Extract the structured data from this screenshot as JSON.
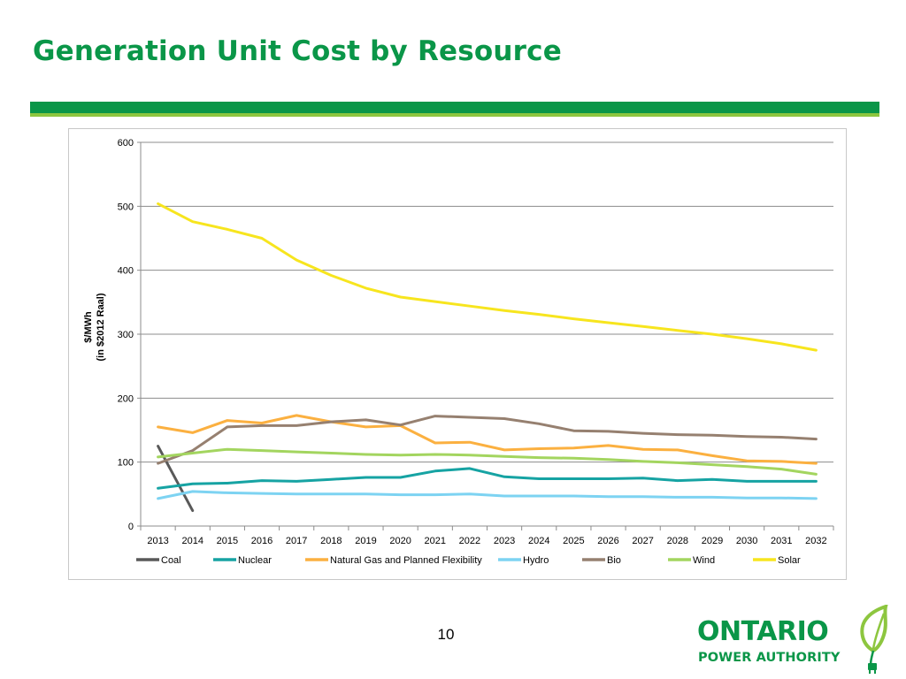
{
  "slide": {
    "title": "Generation Unit Cost by Resource",
    "page_number": "10"
  },
  "logo": {
    "line1": "ONTARIO",
    "line2": "POWER AUTHORITY",
    "leaf_icon": "leaf-plug-icon"
  },
  "colors": {
    "brand_green": "#0a9648",
    "light_green": "#8dc63f"
  },
  "chart_data": {
    "type": "line",
    "title": "",
    "xlabel": "",
    "ylabel_lines": [
      "$/MWh",
      "(in $2012 Raal)"
    ],
    "ylim": [
      0,
      600
    ],
    "yticks": [
      0,
      100,
      200,
      300,
      400,
      500,
      600
    ],
    "grid": true,
    "legend_position": "bottom",
    "categories": [
      "2013",
      "2014",
      "2015",
      "2016",
      "2017",
      "2018",
      "2019",
      "2020",
      "2021",
      "2022",
      "2023",
      "2024",
      "2025",
      "2026",
      "2027",
      "2028",
      "2029",
      "2030",
      "2031",
      "2032"
    ],
    "series": [
      {
        "name": "Coal",
        "color": "#595959",
        "values": [
          125,
          24,
          null,
          null,
          null,
          null,
          null,
          null,
          null,
          null,
          null,
          null,
          null,
          null,
          null,
          null,
          null,
          null,
          null,
          null
        ]
      },
      {
        "name": "Nuclear",
        "color": "#16a3a3",
        "values": [
          59,
          66,
          67,
          71,
          70,
          73,
          76,
          76,
          86,
          90,
          77,
          74,
          74,
          74,
          75,
          71,
          73,
          70,
          70,
          70
        ]
      },
      {
        "name": "Natural Gas and Planned Flexibility",
        "color": "#fbb040",
        "values": [
          155,
          146,
          165,
          161,
          173,
          163,
          155,
          157,
          130,
          131,
          119,
          121,
          122,
          126,
          120,
          119,
          110,
          102,
          101,
          98
        ]
      },
      {
        "name": "Hydro",
        "color": "#7dd3f2",
        "values": [
          43,
          54,
          52,
          51,
          50,
          50,
          50,
          49,
          49,
          50,
          47,
          47,
          47,
          46,
          46,
          45,
          45,
          44,
          44,
          43
        ]
      },
      {
        "name": "Bio",
        "color": "#968070",
        "values": [
          98,
          118,
          155,
          157,
          157,
          163,
          166,
          158,
          172,
          170,
          168,
          160,
          149,
          148,
          145,
          143,
          142,
          140,
          139,
          136
        ]
      },
      {
        "name": "Wind",
        "color": "#a3d55f",
        "values": [
          108,
          114,
          120,
          118,
          116,
          114,
          112,
          111,
          112,
          111,
          109,
          107,
          106,
          104,
          101,
          99,
          96,
          93,
          89,
          81
        ]
      },
      {
        "name": "Solar",
        "color": "#f7e51e",
        "values": [
          504,
          476,
          464,
          450,
          416,
          392,
          372,
          358,
          351,
          344,
          337,
          331,
          324,
          318,
          312,
          306,
          300,
          293,
          285,
          275
        ]
      }
    ]
  }
}
